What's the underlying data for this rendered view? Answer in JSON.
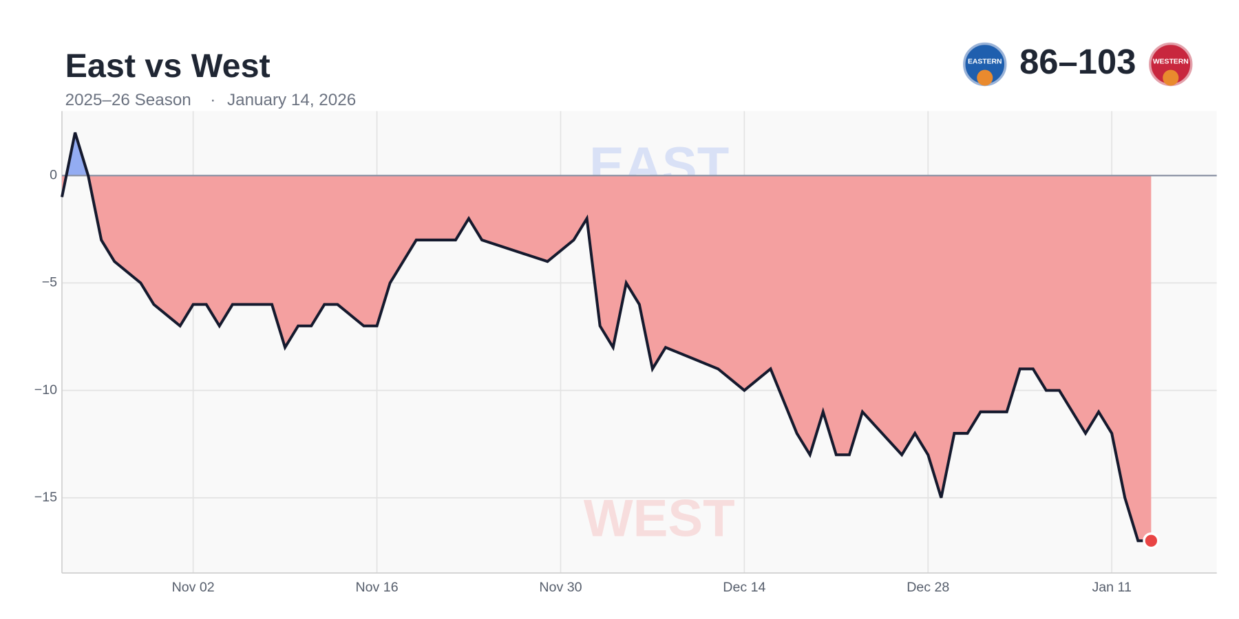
{
  "chart_data": {
    "type": "area",
    "title": "East vs West",
    "subtitle": "2025–26 Season",
    "date": "January 14, 2026",
    "score": "86–103",
    "logos": {
      "east": "EASTERN",
      "west": "WESTERN"
    },
    "watermarks": {
      "positive": "EAST",
      "negative": "WEST"
    },
    "x": [
      "Oct 23",
      "Oct 24",
      "Oct 25",
      "Oct 26",
      "Oct 27",
      "Oct 29",
      "Oct 30",
      "Nov 01",
      "Nov 02",
      "Nov 03",
      "Nov 04",
      "Nov 05",
      "Nov 08",
      "Nov 09",
      "Nov 10",
      "Nov 11",
      "Nov 12",
      "Nov 13",
      "Nov 15",
      "Nov 16",
      "Nov 17",
      "Nov 19",
      "Nov 22",
      "Nov 23",
      "Nov 24",
      "Nov 29",
      "Dec 01",
      "Dec 02",
      "Dec 03",
      "Dec 04",
      "Dec 05",
      "Dec 06",
      "Dec 07",
      "Dec 08",
      "Dec 12",
      "Dec 14",
      "Dec 16",
      "Dec 18",
      "Dec 19",
      "Dec 20",
      "Dec 21",
      "Dec 22",
      "Dec 23",
      "Dec 26",
      "Dec 27",
      "Dec 28",
      "Dec 29",
      "Dec 30",
      "Dec 31",
      "Jan 01",
      "Jan 03",
      "Jan 04",
      "Jan 05",
      "Jan 06",
      "Jan 07",
      "Jan 09",
      "Jan 10",
      "Jan 11",
      "Jan 12",
      "Jan 13",
      "Jan 14"
    ],
    "values": [
      -1,
      2,
      0,
      -3,
      -4,
      -5,
      -6,
      -7,
      -6,
      -6,
      -7,
      -6,
      -6,
      -8,
      -7,
      -7,
      -6,
      -6,
      -7,
      -7,
      -5,
      -3,
      -3,
      -2,
      -3,
      -4,
      -3,
      -2,
      -7,
      -8,
      -5,
      -6,
      -9,
      -8,
      -9,
      -10,
      -9,
      -12,
      -13,
      -11,
      -13,
      -13,
      -11,
      -13,
      -12,
      -13,
      -15,
      -12,
      -12,
      -11,
      -11,
      -9,
      -9,
      -10,
      -10,
      -12,
      -11,
      -12,
      -15,
      -17,
      -17
    ],
    "line_color": "#151a2e",
    "positive_color": "#93acf2",
    "negative_color": "#f4a0a0",
    "end_marker_color": "#e94545",
    "xlim": [
      "Oct 23",
      "Jan 19"
    ],
    "xticks": [
      "Nov 02",
      "Nov 16",
      "Nov 30",
      "Dec 14",
      "Dec 28",
      "Jan 11"
    ],
    "ylim": [
      -18.5,
      3
    ],
    "yticks": [
      {
        "value": -15,
        "label": "−15"
      },
      {
        "value": -10,
        "label": "−10"
      },
      {
        "value": -5,
        "label": "−5"
      },
      0
    ],
    "grid": true
  }
}
